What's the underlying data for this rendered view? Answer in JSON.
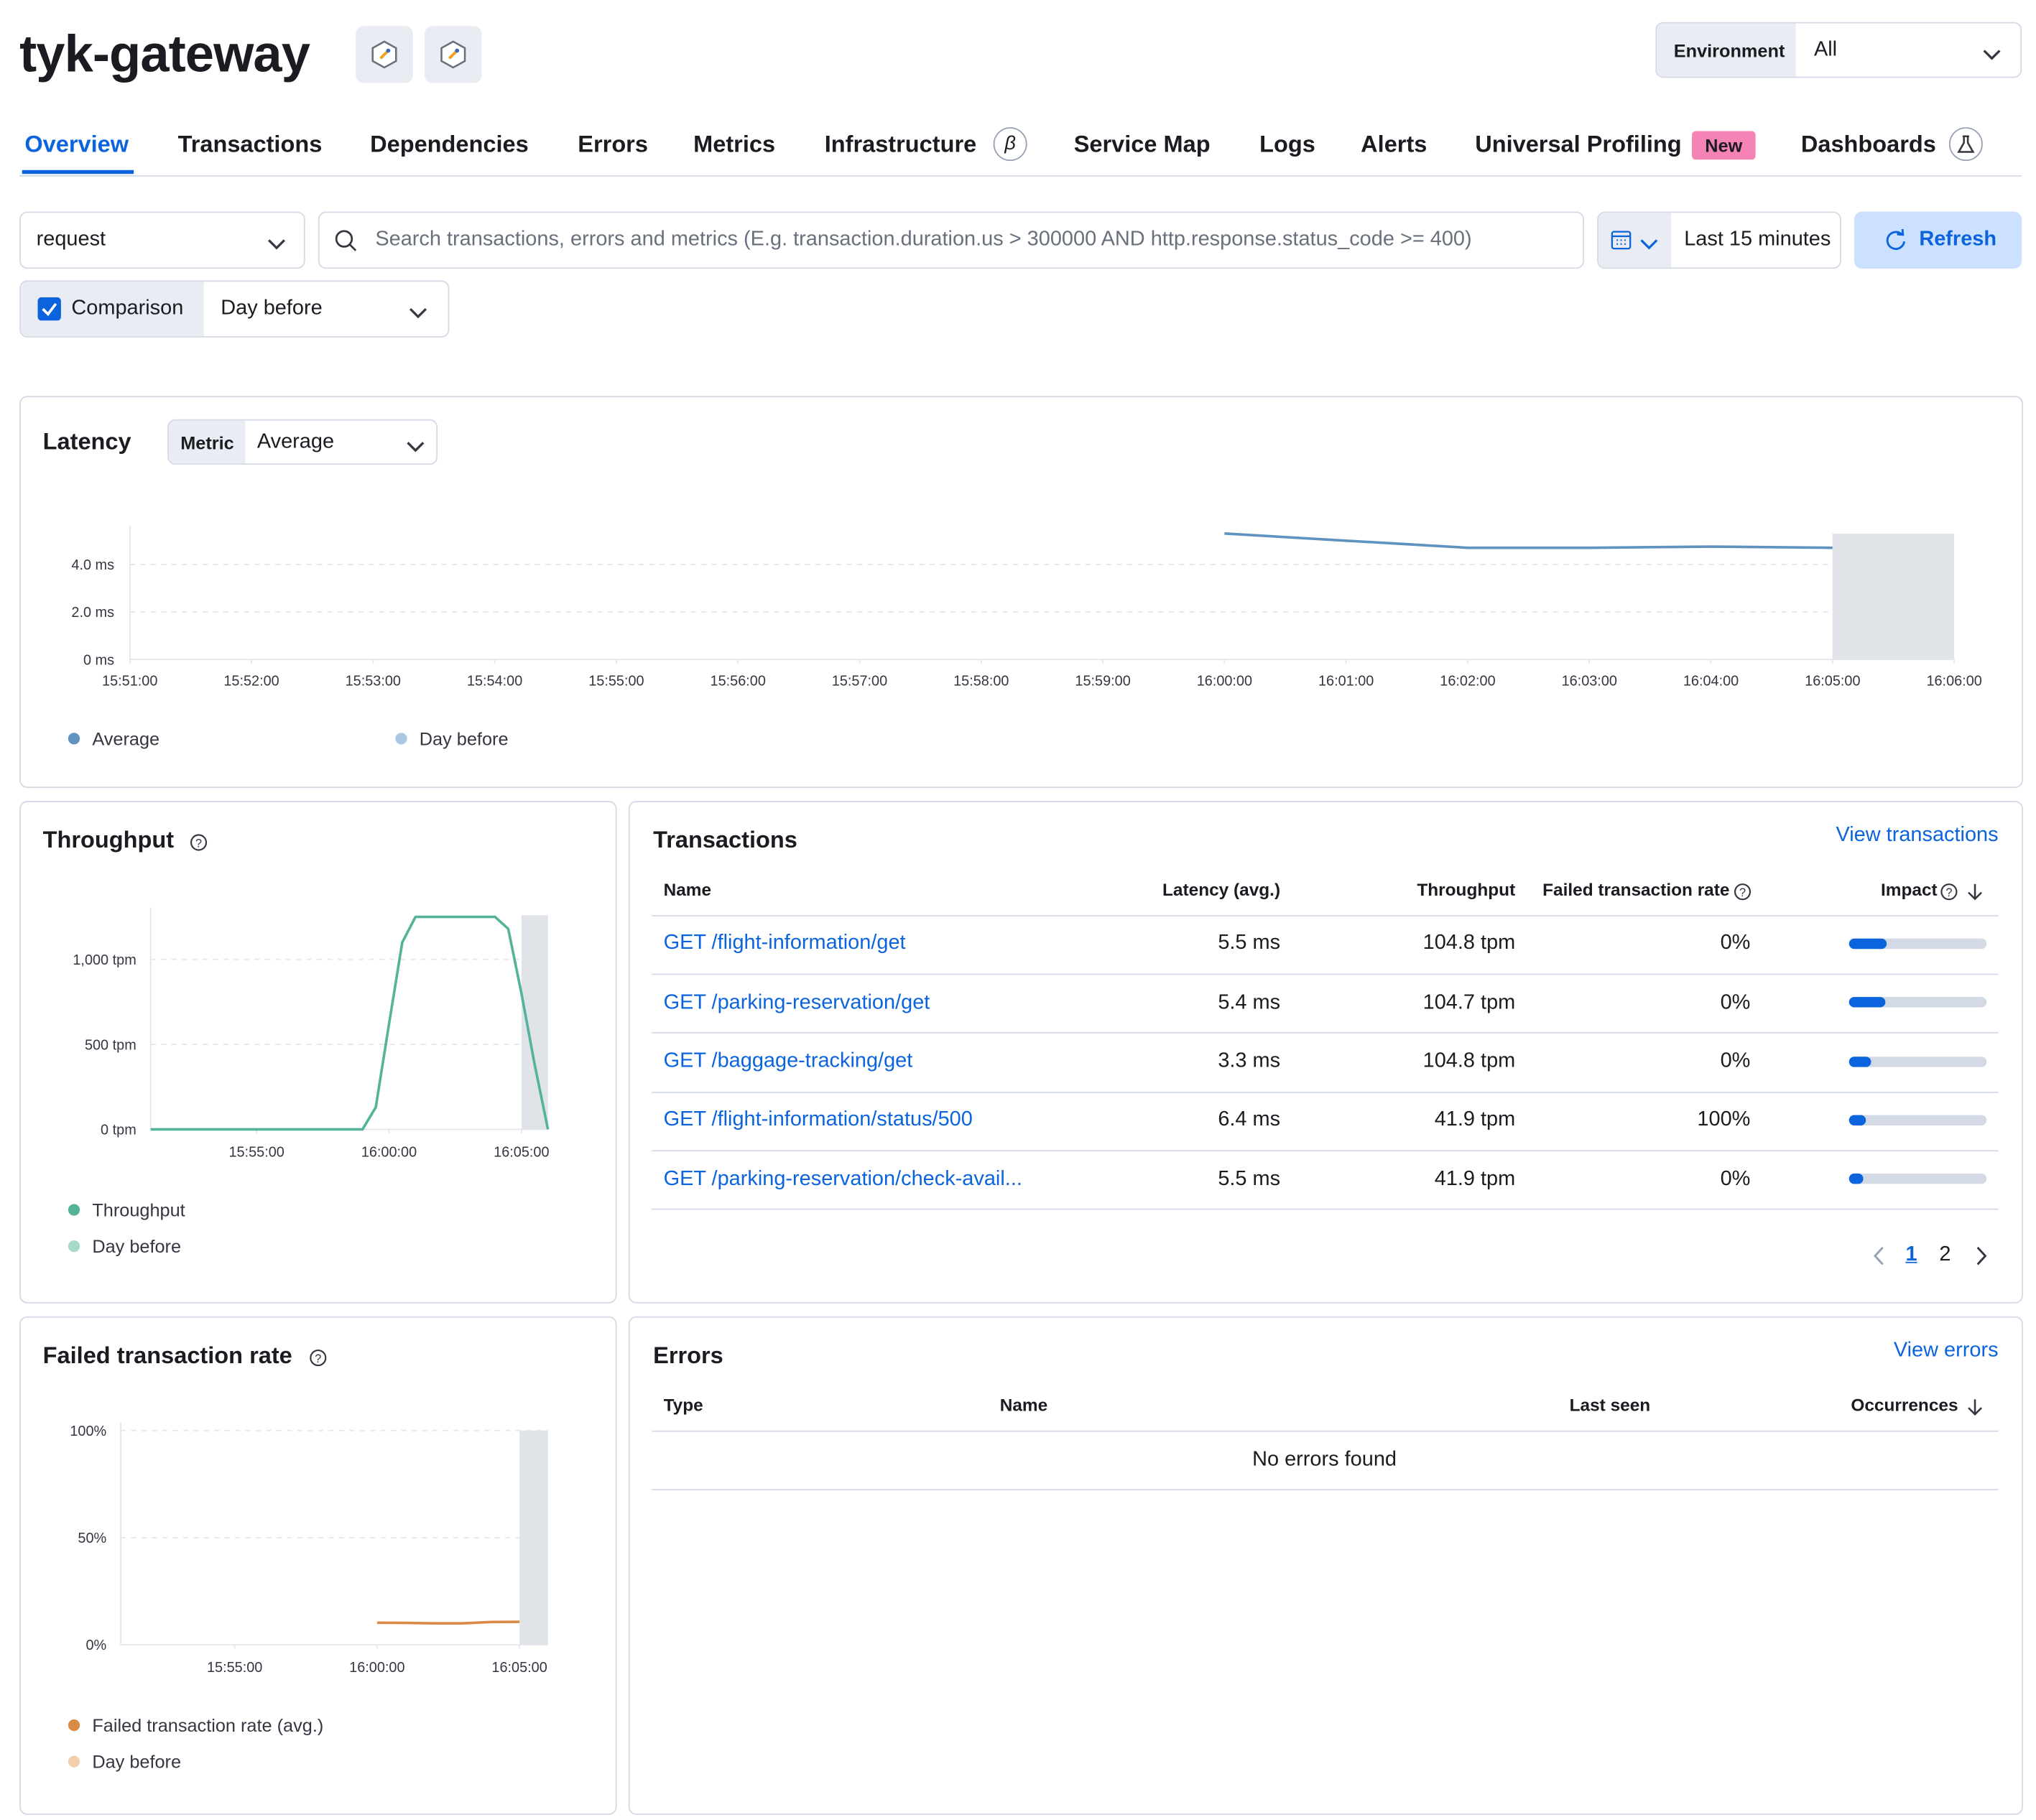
{
  "header": {
    "title": "tyk-gateway",
    "environment_label": "Environment",
    "environment_value": "All"
  },
  "tabs": [
    "Overview",
    "Transactions",
    "Dependencies",
    "Errors",
    "Metrics",
    "Infrastructure",
    "Service Map",
    "Logs",
    "Alerts",
    "Universal Profiling",
    "Dashboards"
  ],
  "badges": {
    "infrastructure": "β",
    "universal_profiling": "New"
  },
  "filters": {
    "transaction_type": "request",
    "search_placeholder": "Search transactions, errors and metrics (E.g. transaction.duration.us > 300000 AND http.response.status_code >= 400)",
    "time_range": "Last 15 minutes",
    "refresh": "Refresh",
    "comparison": "Comparison",
    "comparison_value": "Day before"
  },
  "latency": {
    "type": "line",
    "title": "Latency",
    "metric_label": "Metric",
    "metric_value": "Average",
    "x": [
      "16:00:00",
      "16:01:00",
      "16:02:00",
      "16:03:00",
      "16:04:00",
      "16:05:00"
    ],
    "series": [
      {
        "name": "Average",
        "color": "#6092c0",
        "values": [
          5.3,
          5.0,
          4.7,
          4.7,
          4.75,
          4.7
        ]
      },
      {
        "name": "Day before",
        "color": "#aac7e3",
        "values": [
          null,
          null,
          null,
          null,
          null,
          null
        ]
      }
    ],
    "xlim": [
      "15:51:00",
      "16:06:00"
    ],
    "xticks": [
      "15:51:00",
      "15:52:00",
      "15:53:00",
      "15:54:00",
      "15:55:00",
      "15:56:00",
      "15:57:00",
      "15:58:00",
      "15:59:00",
      "16:00:00",
      "16:01:00",
      "16:02:00",
      "16:03:00",
      "16:04:00",
      "16:05:00",
      "16:06:00"
    ],
    "ylim": [
      0,
      5.3
    ],
    "yticks": [
      {
        "value": 0,
        "label": "0 ms"
      },
      {
        "value": 2,
        "label": "2.0 ms"
      },
      {
        "value": 4,
        "label": "4.0 ms"
      }
    ],
    "grid": true
  },
  "throughput": {
    "type": "line",
    "title": "Throughput",
    "x": [
      "15:51:00",
      "15:59:00",
      "15:59:30",
      "16:00:00",
      "16:00:30",
      "16:01:00",
      "16:04:00",
      "16:04:30",
      "16:05:00",
      "16:05:30",
      "16:06:00"
    ],
    "series": [
      {
        "name": "Throughput",
        "color": "#54b399",
        "values": [
          0,
          0,
          130,
          620,
          1100,
          1250,
          1250,
          1180,
          800,
          380,
          0
        ]
      },
      {
        "name": "Day before",
        "color": "#a6dbc8",
        "values": [
          null,
          null,
          null,
          null,
          null,
          null,
          null,
          null,
          null,
          null,
          null
        ]
      }
    ],
    "xlim": [
      "15:51:00",
      "16:06:00"
    ],
    "xticks": [
      "15:55:00",
      "16:00:00",
      "16:05:00"
    ],
    "ylim": [
      0,
      1260
    ],
    "yticks": [
      {
        "value": 0,
        "label": "0 tpm"
      },
      {
        "value": 500,
        "label": "500 tpm"
      },
      {
        "value": 1000,
        "label": "1,000 tpm"
      }
    ],
    "grid": true
  },
  "failed_rate": {
    "type": "line",
    "title": "Failed transaction rate",
    "x": [
      "16:00:00",
      "16:01:00",
      "16:02:00",
      "16:03:00",
      "16:04:00",
      "16:05:00"
    ],
    "series": [
      {
        "name": "Failed transaction rate (avg.)",
        "color": "#da8b45",
        "values": [
          10.3,
          10.2,
          10,
          10,
          10.6,
          10.7
        ]
      },
      {
        "name": "Day before",
        "color": "#f1cfae",
        "values": [
          null,
          null,
          null,
          null,
          null,
          null
        ]
      }
    ],
    "xlim": [
      "15:51:00",
      "16:06:00"
    ],
    "xticks": [
      "15:55:00",
      "16:00:00",
      "16:05:00"
    ],
    "ylim": [
      0,
      100
    ],
    "yticks": [
      {
        "value": 0,
        "label": "0%"
      },
      {
        "value": 50,
        "label": "50%"
      },
      {
        "value": 100,
        "label": "100%"
      }
    ],
    "grid": true
  },
  "transactions": {
    "title": "Transactions",
    "link": "View transactions",
    "columns": [
      "Name",
      "Latency (avg.)",
      "Throughput",
      "Failed transaction rate",
      "Impact"
    ],
    "rows": [
      {
        "name": "GET /flight-information/get",
        "latency": "5.5 ms",
        "throughput": "104.8 tpm",
        "failed_rate": "0%",
        "impact": 27
      },
      {
        "name": "GET /parking-reservation/get",
        "latency": "5.4 ms",
        "throughput": "104.7 tpm",
        "failed_rate": "0%",
        "impact": 26
      },
      {
        "name": "GET /baggage-tracking/get",
        "latency": "3.3 ms",
        "throughput": "104.8 tpm",
        "failed_rate": "0%",
        "impact": 16
      },
      {
        "name": "GET /flight-information/status/500",
        "latency": "6.4 ms",
        "throughput": "41.9 tpm",
        "failed_rate": "100%",
        "impact": 12
      },
      {
        "name": "GET /parking-reservation/check-avail...",
        "latency": "5.5 ms",
        "throughput": "41.9 tpm",
        "failed_rate": "0%",
        "impact": 10
      }
    ],
    "impact_max": 100,
    "pages": [
      "1",
      "2"
    ]
  },
  "errors": {
    "title": "Errors",
    "link": "View errors",
    "columns": [
      "Type",
      "Name",
      "Last seen",
      "Occurrences"
    ],
    "empty": "No errors found"
  }
}
